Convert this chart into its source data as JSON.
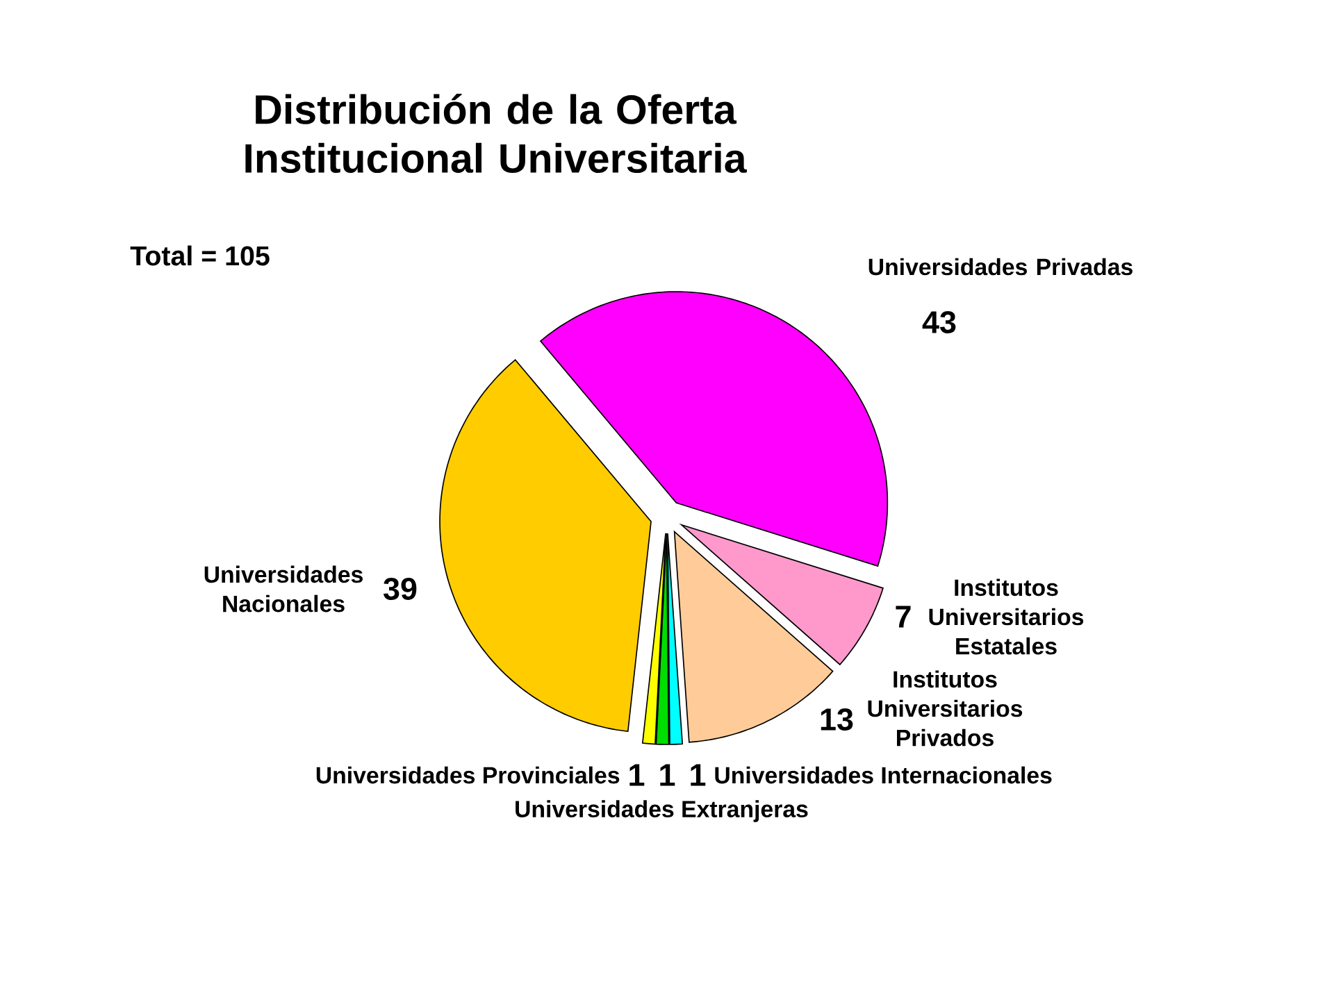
{
  "chart_data": {
    "type": "pie",
    "title": "Distribución de la Oferta Institucional Universitaria",
    "categories": [
      "Universidades Privadas",
      "Institutos Universitarios Estatales",
      "Institutos Universitarios Privados",
      "Universidades Internacionales",
      "Universidades Extranjeras",
      "Universidades Provinciales",
      "Universidades Nacionales"
    ],
    "values": [
      43,
      7,
      13,
      1,
      1,
      1,
      39
    ],
    "colors": [
      "#ff00ff",
      "#ff99cc",
      "#ffcc99",
      "#00ffff",
      "#00dd00",
      "#ffff00",
      "#ffcc00"
    ],
    "data_labels": true,
    "annotations": [
      "Total = 105"
    ]
  }
}
